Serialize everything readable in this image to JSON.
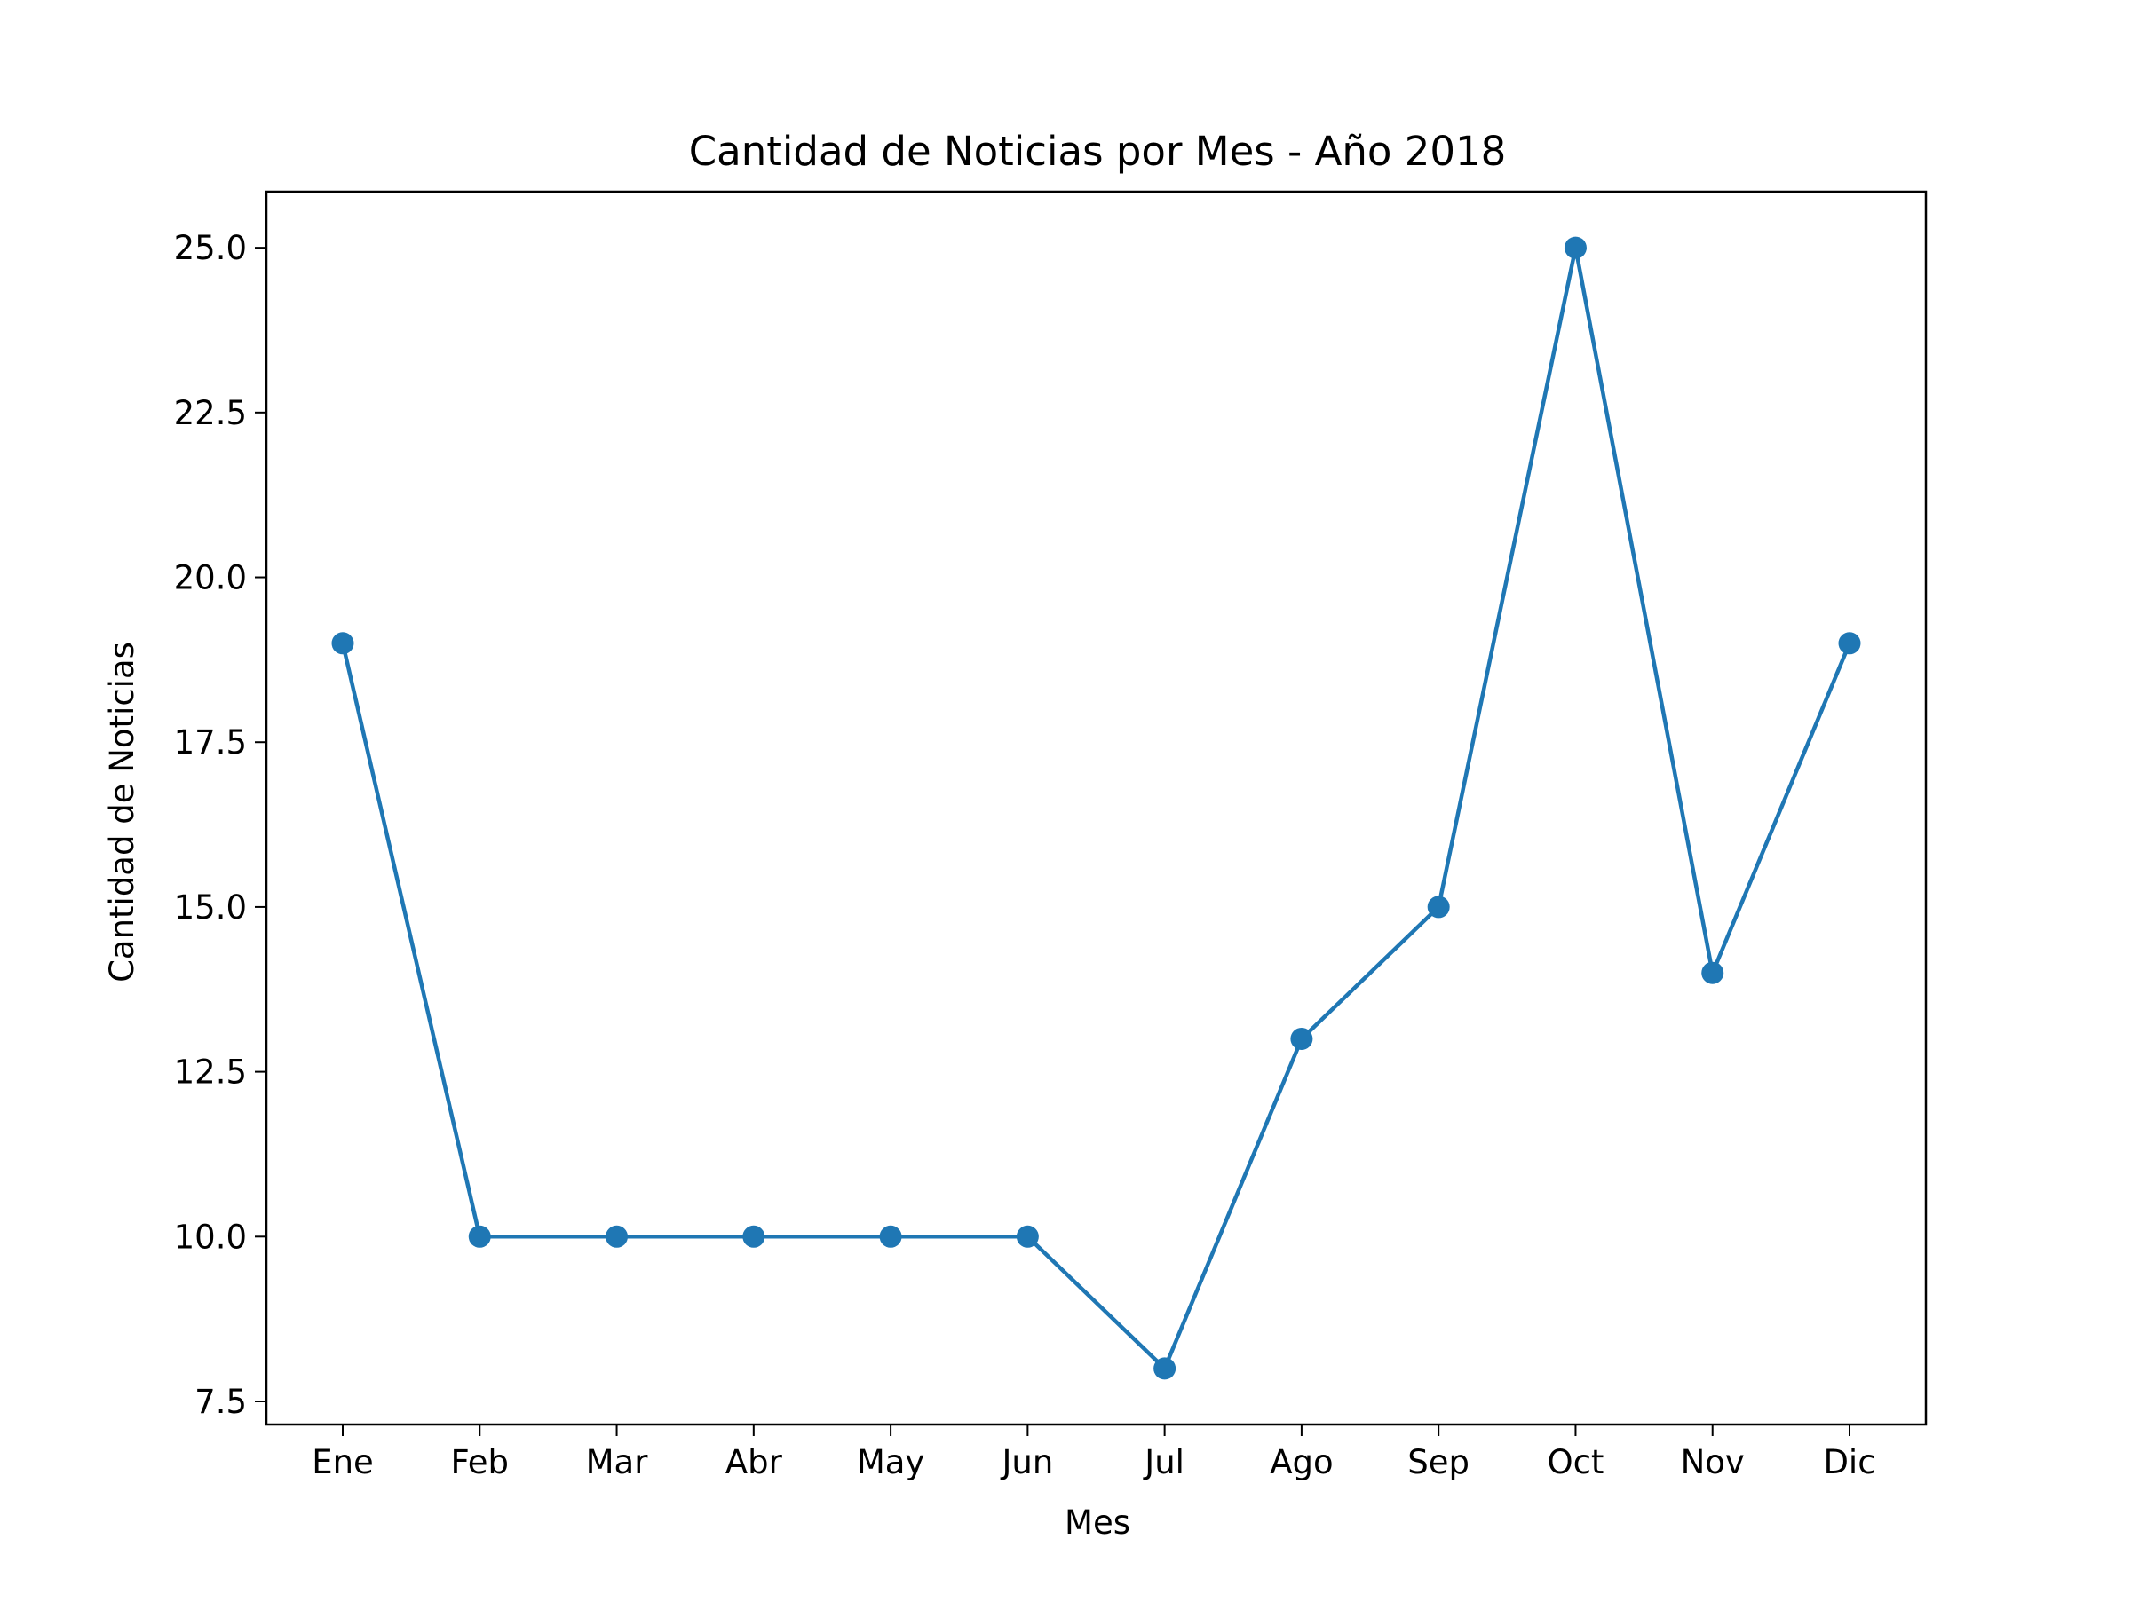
{
  "chart_data": {
    "type": "line",
    "title": "Cantidad de Noticias por Mes - Año 2018",
    "xlabel": "Mes",
    "ylabel": "Cantidad de Noticias",
    "categories": [
      "Ene",
      "Feb",
      "Mar",
      "Abr",
      "May",
      "Jun",
      "Jul",
      "Ago",
      "Sep",
      "Oct",
      "Nov",
      "Dic"
    ],
    "series": [
      {
        "values": [
          19,
          10,
          10,
          10,
          10,
          10,
          8,
          13,
          15,
          25,
          14,
          19
        ]
      }
    ],
    "ylim": [
      7.15,
      25.85
    ],
    "yticks": [
      7.5,
      10.0,
      12.5,
      15.0,
      17.5,
      20.0,
      22.5,
      25.0
    ],
    "ytick_labels": [
      "7.5",
      "10.0",
      "12.5",
      "15.0",
      "17.5",
      "20.0",
      "22.5",
      "25.0"
    ],
    "grid": false,
    "markers": true,
    "color": "#1f77b4"
  }
}
